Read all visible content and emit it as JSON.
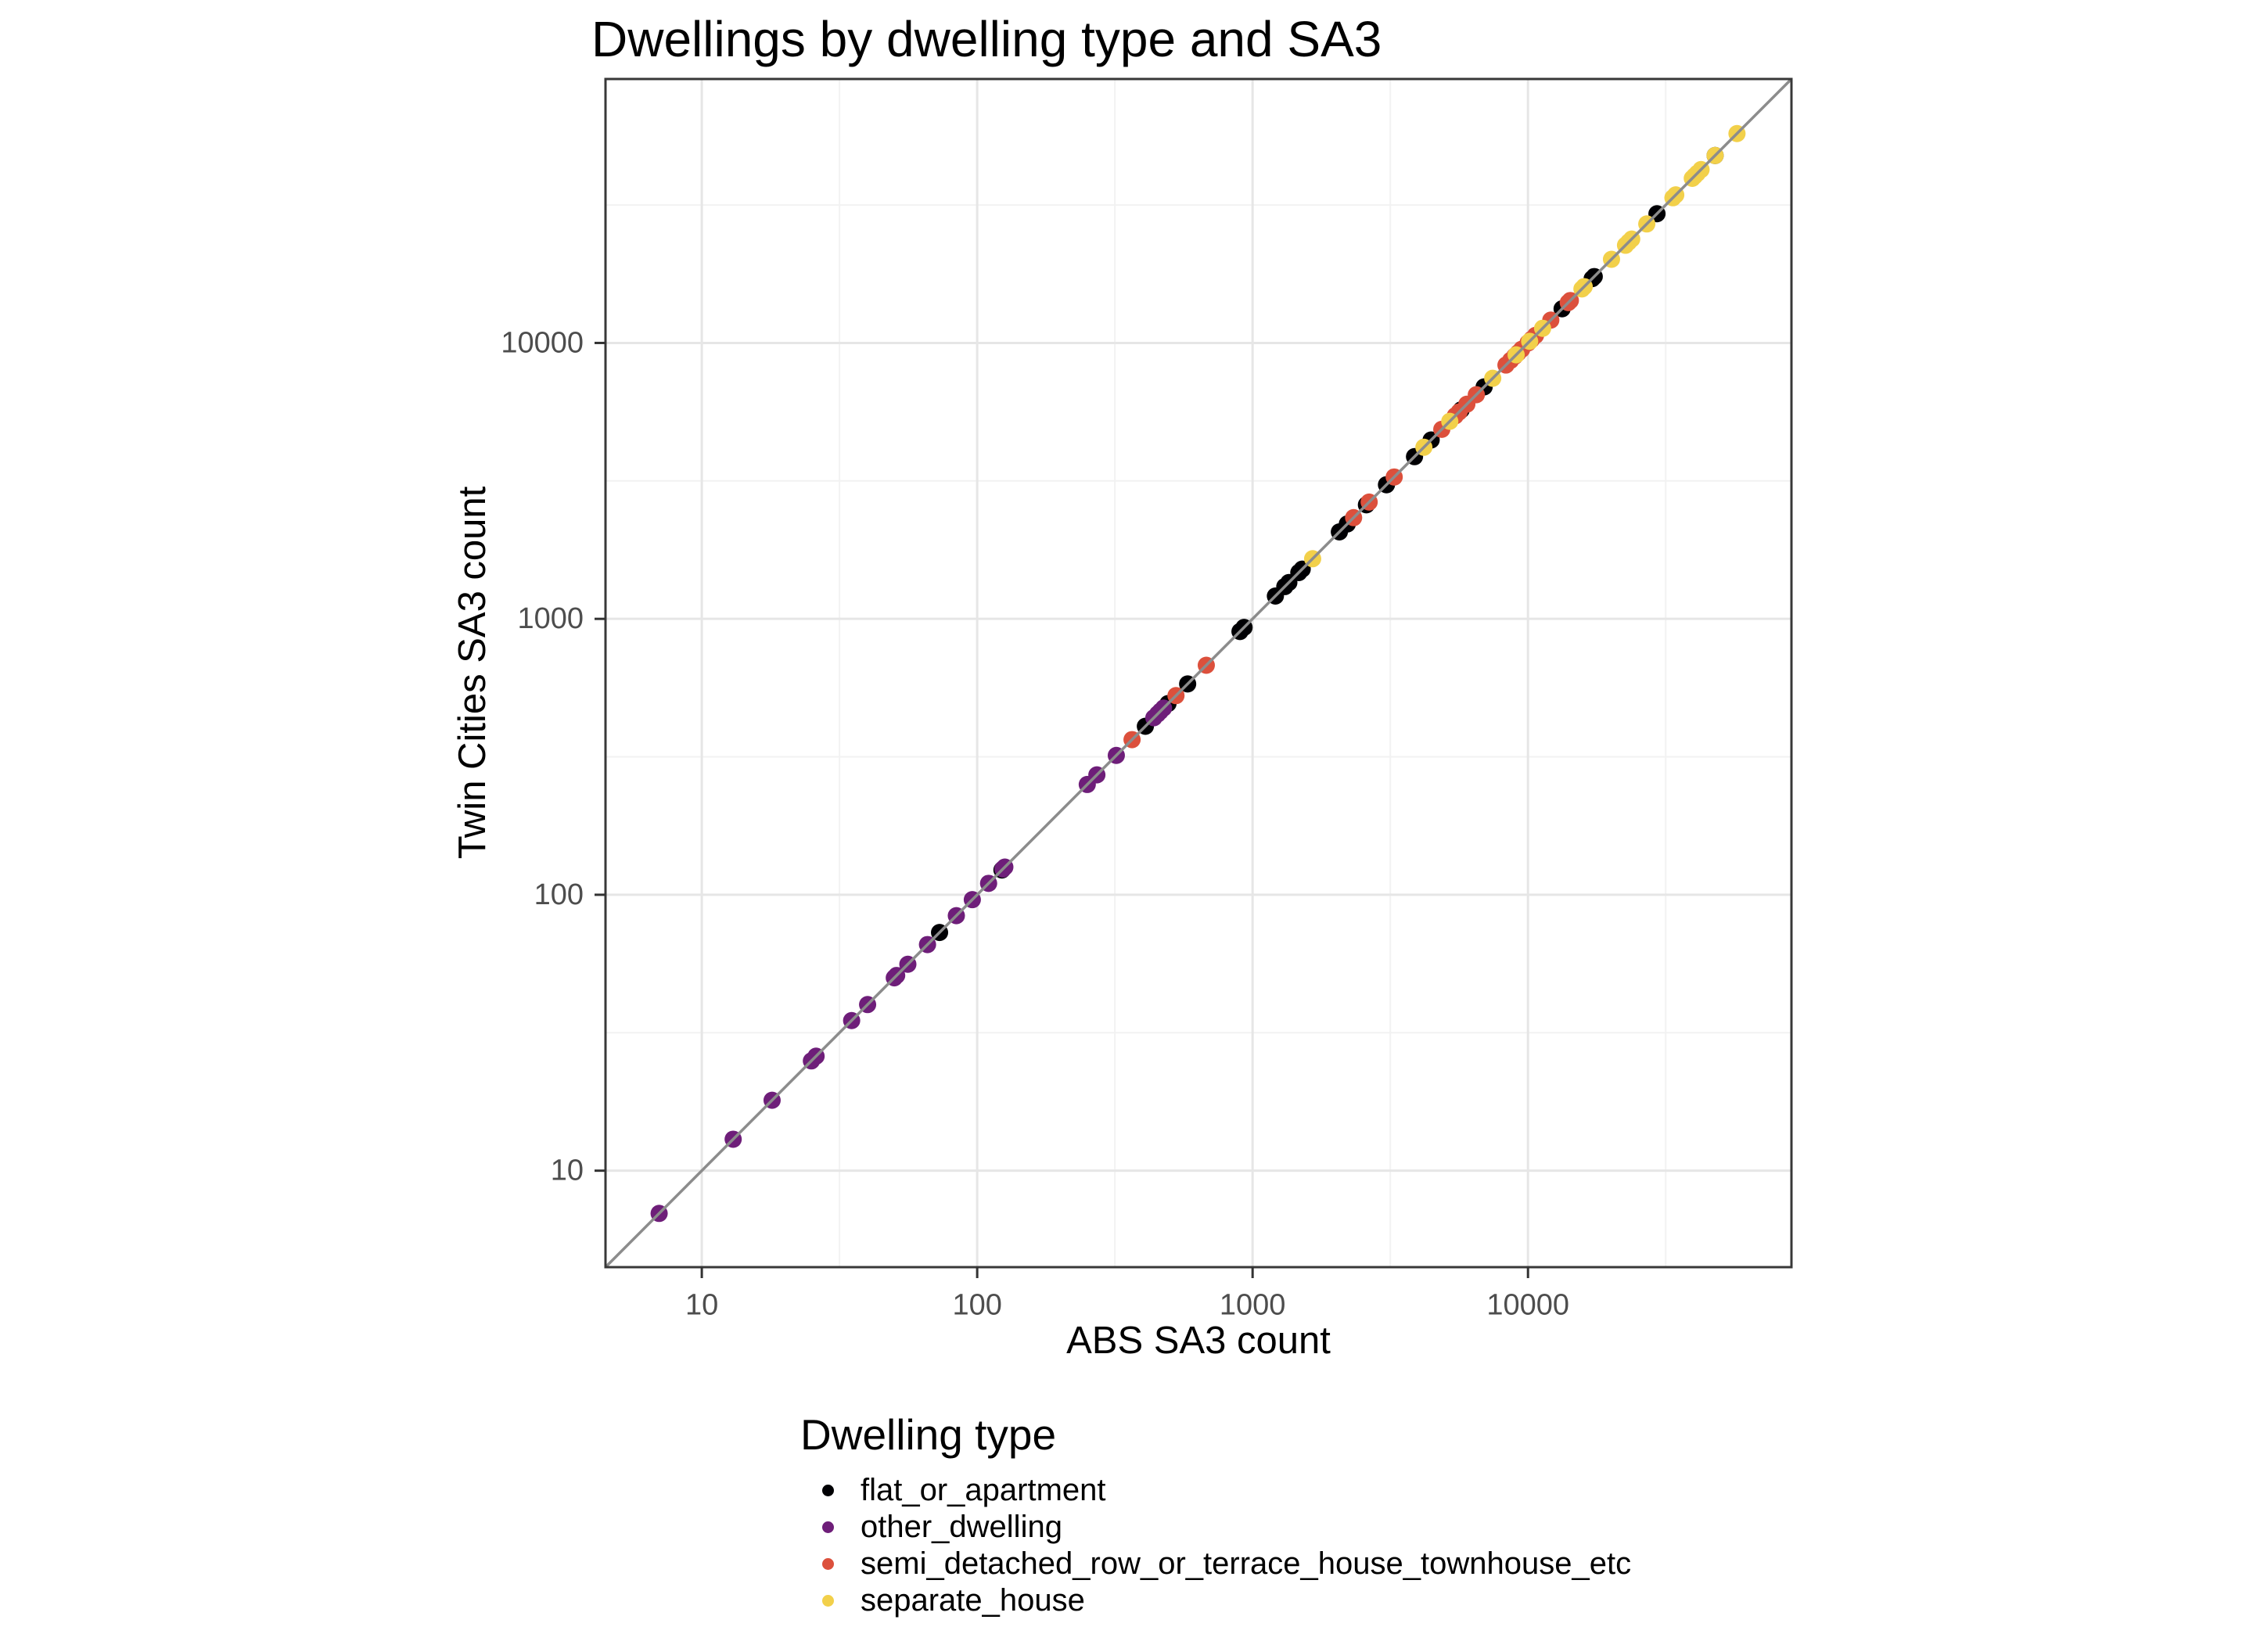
{
  "title": "Dwellings by dwelling type and SA3",
  "axes": {
    "x_title": "ABS SA3 count",
    "y_title": "Twin Cities SA3 count",
    "x_tick_labels": [
      "10",
      "100",
      "1000",
      "10000"
    ],
    "y_tick_labels": [
      "10",
      "100",
      "1000",
      "10000"
    ]
  },
  "legend": {
    "title": "Dwelling type"
  },
  "style_colors": {
    "tick_label": "#4D4D4D",
    "tick_mark": "#333333",
    "panel_border": "#383838",
    "grid_major": "#E6E6E6",
    "grid_minor": "#F2F2F2",
    "identity_line": "#8C8C8C",
    "panel_background": "#FFFFFF"
  },
  "chart_data": {
    "type": "scatter",
    "title": "Dwellings by dwelling type and SA3",
    "xlabel": "ABS SA3 count",
    "ylabel": "Twin Cities SA3 count",
    "x_scale": "log10",
    "y_scale": "log10",
    "x_domain": [
      4.47,
      90500
    ],
    "y_domain": [
      4.47,
      90500
    ],
    "x_major_ticks": [
      10,
      100,
      1000,
      10000
    ],
    "y_major_ticks": [
      10,
      100,
      1000,
      10000
    ],
    "x_minor_ticks": [
      31.62,
      316.23,
      3162.3,
      31623
    ],
    "y_minor_ticks": [
      31.62,
      316.23,
      3162.3,
      31623
    ],
    "grid": true,
    "identity_line": true,
    "points_on_identity": true,
    "legend_position": "bottom",
    "legend_title": "Dwelling type",
    "series": [
      {
        "name": "flat_or_apartment",
        "color": "#000004",
        "values": [
          73,
          123,
          408,
          493,
          581,
          900,
          931,
          1210,
          1309,
          1354,
          1472,
          1514,
          2066,
          2208,
          2590,
          3063,
          3872,
          4450,
          5720,
          6930,
          13300,
          17100,
          17400,
          29400,
          47800
        ]
      },
      {
        "name": "other_dwelling",
        "color": "#6E1E79",
        "values": [
          7,
          13,
          18,
          25,
          26,
          35,
          40,
          50,
          51,
          56,
          66,
          84,
          96,
          110,
          124,
          126,
          251,
          272,
          320,
          438,
          452,
          462,
          475
        ]
      },
      {
        "name": "semi_detached_row_or_terrace_house_townhouse_etc",
        "color": "#DC503C",
        "values": [
          365,
          527,
          679,
          2327,
          2650,
          3267,
          4864,
          5445,
          5620,
          5998,
          6492,
          8318,
          8650,
          8950,
          9200,
          9484,
          10000,
          10300,
          10650,
          12100,
          14000,
          14250
        ]
      },
      {
        "name": "separate_house",
        "color": "#F2D04A",
        "values": [
          1652,
          4188,
          5200,
          7447,
          9057,
          10140,
          11300,
          15700,
          16000,
          20100,
          22600,
          23200,
          23800,
          27000,
          33600,
          34400,
          39500,
          40300,
          41200,
          42500,
          47800,
          57400
        ]
      }
    ]
  }
}
